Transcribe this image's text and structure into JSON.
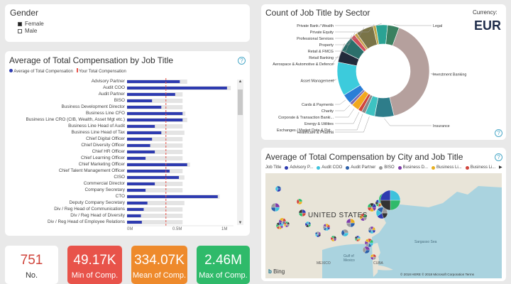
{
  "gender": {
    "title": "Gender",
    "items": [
      {
        "label": "Female",
        "color": "#222222"
      },
      {
        "label": "Male",
        "color": "#ffffff"
      }
    ]
  },
  "comp_chart": {
    "title": "Average of Total Compensation by Job Title",
    "legend_avg": "Average of Total Compensation",
    "legend_yours": "Your Total Compensation",
    "help": "?",
    "x_ticks": [
      "0M",
      "0.5M",
      "1M"
    ]
  },
  "chart_data": [
    {
      "type": "bar",
      "title": "Average of Total Compensation by Job Title",
      "categories": [
        "Advisory Partner",
        "Audit COO",
        "Audit Partner",
        "BISO",
        "Business Development Director",
        "Business Line CFO",
        "Business Line CRO (CIB, Wealth, Asset Mgt etc.)",
        "Business Line Head of Audit",
        "Business Line Head of Tax",
        "Chief Digital Officer",
        "Chief Diversity Officer",
        "Chief HR Officer",
        "Chief Learning Officer",
        "Chief Marketing Officer",
        "Chief Talent Management Officer",
        "CISO",
        "Commercial Director",
        "Company Secretary",
        "CTO",
        "Deputy Company Secretary",
        "Div / Reg Head of Communications",
        "Div / Reg Head of Diversity",
        "Div / Reg Head of Employee Relations"
      ],
      "series": [
        {
          "name": "Average of Total Compensation",
          "values": [
            0.57,
            1.08,
            0.52,
            0.27,
            0.37,
            0.6,
            0.6,
            0.3,
            0.37,
            0.27,
            0.25,
            0.3,
            0.2,
            0.65,
            0.46,
            0.56,
            0.3,
            0.2,
            0.98,
            0.22,
            0.18,
            0.15,
            0.16
          ]
        }
      ],
      "max_values": [
        0.65,
        1.12,
        0.6,
        0.6,
        0.6,
        0.63,
        0.65,
        0.6,
        0.62,
        0.6,
        0.6,
        0.6,
        0.6,
        0.68,
        0.6,
        0.62,
        0.6,
        0.6,
        1.0,
        0.62,
        0.6,
        0.6,
        0.6
      ],
      "reference_value": 0.42,
      "xlim": [
        0,
        1.15
      ],
      "x_ticks": [
        "0M",
        "0.5M",
        "1M"
      ]
    },
    {
      "type": "pie",
      "title": "Count of Job Title by Sector",
      "categories": [
        "Investment Banking",
        "Insurance",
        "Healthcare & Pharma",
        "Exchanges / Market Data & Rat...",
        "Energy & Utilities",
        "Corporate & Transaction Banki...",
        "Charity",
        "Cards & Payments",
        "Asset Management",
        "Aerospace & Automotive & Defence",
        "Retail Banking",
        "Retail & FMCG",
        "Property",
        "Professional Services",
        "Private Equity",
        "Private Bank / Wealth",
        "Legal"
      ],
      "values": [
        120,
        20,
        10,
        4,
        4,
        8,
        3,
        10,
        35,
        12,
        16,
        5,
        3,
        18,
        3,
        12,
        12
      ],
      "colors": [
        "#b5a09d",
        "#2e7d8a",
        "#3ec2c2",
        "#8a8a8a",
        "#d0453c",
        "#f2a81e",
        "#7d6ab2",
        "#2a7ed6",
        "#3ccbdc",
        "#222a3a",
        "#2c6f6b",
        "#d14f5c",
        "#c8a14a",
        "#7a7448",
        "#bfa84a",
        "#2aa394",
        "#3a8060"
      ]
    }
  ],
  "sector_chart": {
    "title": "Count of Job Title by Sector",
    "currency_label": "Currency:",
    "currency": "EUR",
    "help": "?"
  },
  "map_chart": {
    "title": "Average of Total Compensation by City and Job Title",
    "help": "?",
    "legend_title": "Job Title",
    "legend": [
      {
        "label": "Advisory P...",
        "color": "#2e3bb0"
      },
      {
        "label": "Audit COO",
        "color": "#3ec2dc"
      },
      {
        "label": "Audit Partner",
        "color": "#2b5fa8"
      },
      {
        "label": "BISO",
        "color": "#9a9a9a"
      },
      {
        "label": "Business D...",
        "color": "#7d3aa8"
      },
      {
        "label": "Business Li...",
        "color": "#e8b020"
      },
      {
        "label": "Business Li...",
        "color": "#d0453c"
      }
    ],
    "labels": {
      "country": "UNITED STATES",
      "mexico": "MEXICO",
      "gulf": "Gulf of Mexico",
      "sargasso": "Sargasso Sea",
      "cuba": "CUBA",
      "bing": "Bing",
      "copyright": "© 2018 HERE © 2018 Microsoft Corporation  Terms"
    }
  },
  "kpis": [
    {
      "value": "751",
      "label": "No.",
      "bg": "#ffffff",
      "fg": "#d0453c"
    },
    {
      "value": "49.17K",
      "label": "Min of Comp.",
      "bg": "#e8534a",
      "fg": "#ffffff"
    },
    {
      "value": "334.07K",
      "label": "Mean of Comp.",
      "bg": "#ee8a2c",
      "fg": "#ffffff"
    },
    {
      "value": "2.46M",
      "label": "Max of Comp.",
      "bg": "#2fba6a",
      "fg": "#ffffff"
    }
  ]
}
